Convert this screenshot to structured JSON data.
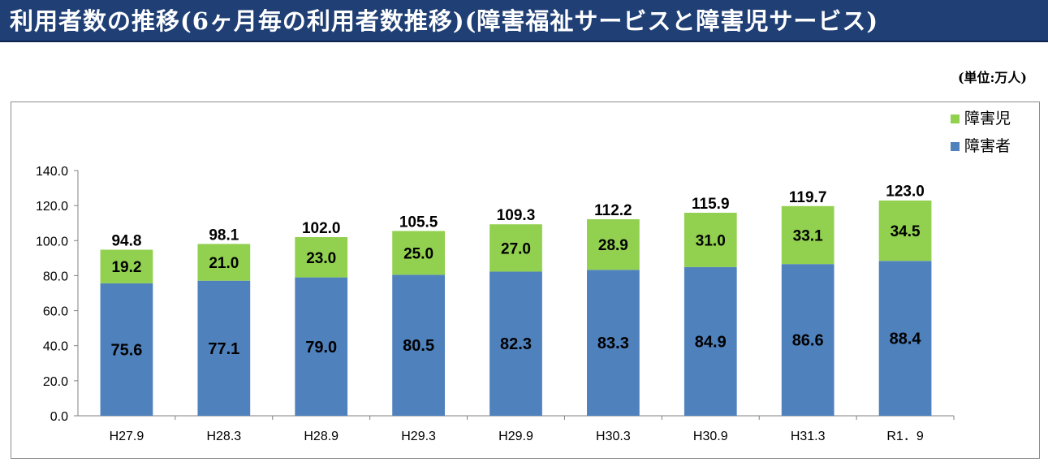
{
  "header": {
    "title": "利用者数の推移(6ヶ月毎の利用者数推移)(障害福祉サービスと障害児サービス)",
    "unit": "(単位:万人)"
  },
  "chart_data": {
    "type": "bar",
    "stacked": true,
    "categories": [
      "H27.9",
      "H28.3",
      "H28.9",
      "H29.3",
      "H29.9",
      "H30.3",
      "H30.9",
      "H31.3",
      "R1．9"
    ],
    "series": [
      {
        "name": "障害者",
        "color": "#4f81bd",
        "values": [
          75.6,
          77.1,
          79.0,
          80.5,
          82.3,
          83.3,
          84.9,
          86.6,
          88.4
        ]
      },
      {
        "name": "障害児",
        "color": "#92d050",
        "values": [
          19.2,
          21.0,
          23.0,
          25.0,
          27.0,
          28.9,
          31.0,
          33.1,
          34.5
        ]
      }
    ],
    "totals": [
      94.8,
      98.1,
      102.0,
      105.5,
      109.3,
      112.2,
      115.9,
      119.7,
      123.0
    ],
    "ylim": [
      0,
      140
    ],
    "yticks": [
      "0.0",
      "20.0",
      "40.0",
      "60.0",
      "80.0",
      "100.0",
      "120.0",
      "140.0"
    ],
    "legend": [
      {
        "name": "障害児",
        "color": "#92d050"
      },
      {
        "name": "障害者",
        "color": "#4f81bd"
      }
    ],
    "legend_position": "top-right",
    "grid": false
  }
}
